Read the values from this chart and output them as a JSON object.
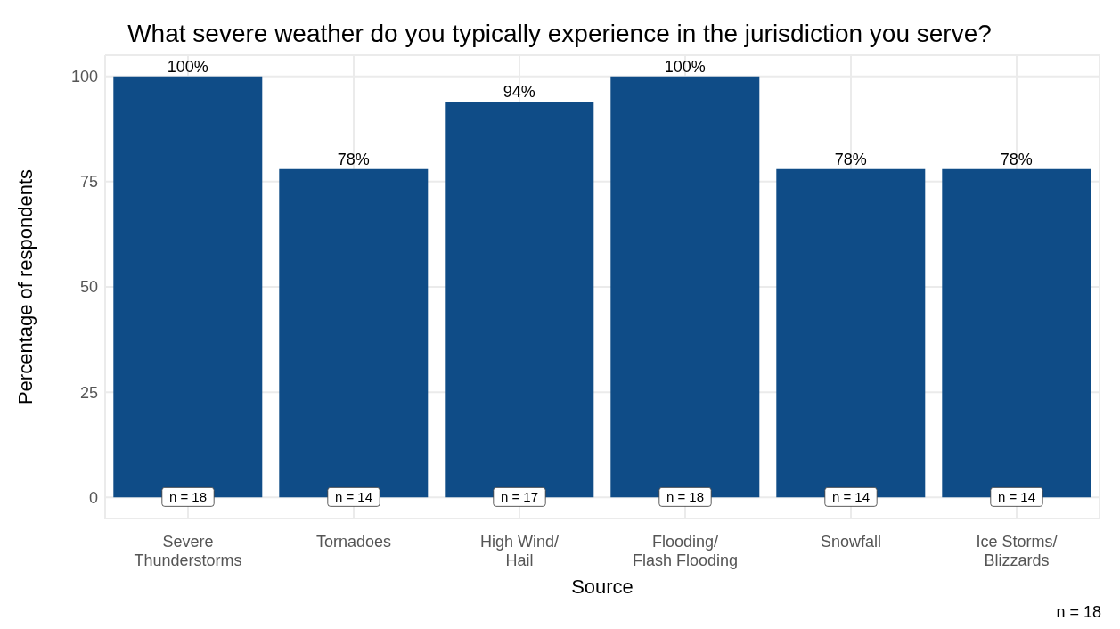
{
  "chart_data": {
    "type": "bar",
    "title": "What severe weather do you typically experience in the jurisdiction you serve?",
    "xlabel": "Source",
    "ylabel": "Percentage of respondents",
    "categories": [
      "Severe\nThunderstorms",
      "Tornadoes",
      "High Wind/\nHail",
      "Flooding/\nFlash Flooding",
      "Snowfall",
      "Ice Storms/\nBlizzards"
    ],
    "values": [
      100,
      78,
      94,
      100,
      78,
      78
    ],
    "value_labels": [
      "100%",
      "78%",
      "94%",
      "100%",
      "78%",
      "78%"
    ],
    "color": "#0f4c87",
    "ylim": [
      -5,
      105
    ],
    "yticks": [
      0,
      25,
      50,
      75,
      100
    ],
    "grid": true,
    "legend": false,
    "annotations": [
      {
        "text": "n = 18",
        "x": "Severe\nThunderstorms",
        "y": 0
      },
      {
        "text": "n = 14",
        "x": "Tornadoes",
        "y": 0
      },
      {
        "text": "n = 17",
        "x": "High Wind/\nHail",
        "y": 0
      },
      {
        "text": "n = 18",
        "x": "Flooding/\nFlash Flooding",
        "y": 0
      },
      {
        "text": "n = 14",
        "x": "Snowfall",
        "y": 0
      },
      {
        "text": "n = 14",
        "x": "Ice Storms/\nBlizzards",
        "y": 0
      },
      "n = 18"
    ]
  }
}
